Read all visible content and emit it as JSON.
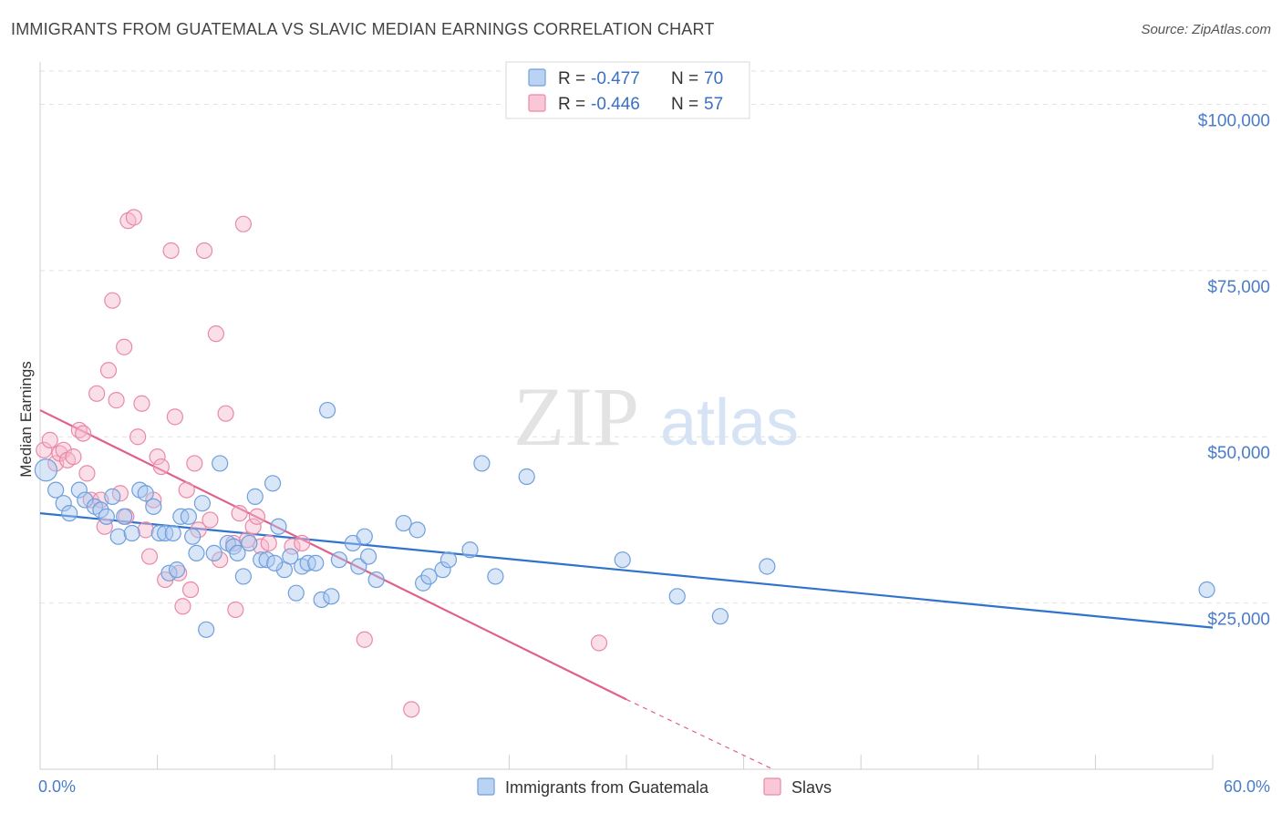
{
  "header": {
    "title": "IMMIGRANTS FROM GUATEMALA VS SLAVIC MEDIAN EARNINGS CORRELATION CHART",
    "source": "Source: ZipAtlas.com"
  },
  "watermark": {
    "zip": "ZIP",
    "atlas": "atlas"
  },
  "legend": {
    "r_label": "R =",
    "n_label": "N =",
    "rows": [
      {
        "r": "-0.477",
        "n": "70",
        "color": "#a9c8f0"
      },
      {
        "r": "-0.446",
        "n": "57",
        "color": "#f7b9cc"
      }
    ]
  },
  "colors": {
    "blue_fill": "#a9c8f0",
    "blue_stroke": "#6f9fdc",
    "blue_line": "#2f73cc",
    "pink_fill": "#f7b9cc",
    "pink_stroke": "#e88aa7",
    "pink_line": "#e0608c",
    "axis_text": "#4a7cc9"
  },
  "chart_data": {
    "type": "scatter",
    "ylabel": "Median Earnings",
    "xlim": [
      0,
      60
    ],
    "ylim": [
      0,
      105000
    ],
    "x_tick_labels": {
      "min": "0.0%",
      "max": "60.0%"
    },
    "y_ticks": [
      {
        "value": 25000,
        "label": "$25,000"
      },
      {
        "value": 50000,
        "label": "$50,000"
      },
      {
        "value": 75000,
        "label": "$75,000"
      },
      {
        "value": 100000,
        "label": "$100,000"
      }
    ],
    "grid": true,
    "legend_position": "top-center",
    "series": [
      {
        "name": "Immigrants from Guatemala",
        "color": "#a9c8f0",
        "trend": {
          "x": [
            0,
            60
          ],
          "y": [
            38500,
            21300
          ],
          "style": "solid"
        },
        "points": [
          [
            0.3,
            45000
          ],
          [
            0.8,
            42000
          ],
          [
            1.2,
            40000
          ],
          [
            1.5,
            38500
          ],
          [
            2.0,
            42000
          ],
          [
            2.3,
            40500
          ],
          [
            2.8,
            39500
          ],
          [
            3.1,
            39000
          ],
          [
            3.4,
            38000
          ],
          [
            3.7,
            41000
          ],
          [
            4.0,
            35000
          ],
          [
            4.3,
            38000
          ],
          [
            4.7,
            35500
          ],
          [
            5.1,
            42000
          ],
          [
            5.4,
            41500
          ],
          [
            5.8,
            39500
          ],
          [
            6.1,
            35500
          ],
          [
            6.4,
            35500
          ],
          [
            6.6,
            29500
          ],
          [
            6.8,
            35500
          ],
          [
            7.2,
            38000
          ],
          [
            7.6,
            38000
          ],
          [
            7.8,
            35000
          ],
          [
            8.0,
            32500
          ],
          [
            8.3,
            40000
          ],
          [
            8.5,
            21000
          ],
          [
            8.9,
            32500
          ],
          [
            9.2,
            46000
          ],
          [
            9.6,
            34000
          ],
          [
            9.9,
            33500
          ],
          [
            10.1,
            32500
          ],
          [
            10.4,
            29000
          ],
          [
            10.7,
            34000
          ],
          [
            11.0,
            41000
          ],
          [
            11.3,
            31500
          ],
          [
            11.6,
            31500
          ],
          [
            11.9,
            43000
          ],
          [
            12.2,
            36500
          ],
          [
            12.5,
            30000
          ],
          [
            12.8,
            32000
          ],
          [
            13.1,
            26500
          ],
          [
            13.4,
            30500
          ],
          [
            13.7,
            31000
          ],
          [
            14.1,
            31000
          ],
          [
            14.4,
            25500
          ],
          [
            14.7,
            54000
          ],
          [
            14.9,
            26000
          ],
          [
            15.3,
            31500
          ],
          [
            16.0,
            34000
          ],
          [
            16.3,
            30500
          ],
          [
            16.6,
            35000
          ],
          [
            16.8,
            32000
          ],
          [
            17.2,
            28500
          ],
          [
            18.6,
            37000
          ],
          [
            19.3,
            36000
          ],
          [
            19.6,
            28000
          ],
          [
            19.9,
            29000
          ],
          [
            20.6,
            30000
          ],
          [
            20.9,
            31500
          ],
          [
            22.0,
            33000
          ],
          [
            22.6,
            46000
          ],
          [
            23.3,
            29000
          ],
          [
            24.9,
            44000
          ],
          [
            29.8,
            31500
          ],
          [
            32.6,
            26000
          ],
          [
            34.8,
            23000
          ],
          [
            37.2,
            30500
          ],
          [
            59.7,
            27000
          ],
          [
            7.0,
            30000
          ],
          [
            12.0,
            31000
          ]
        ]
      },
      {
        "name": "Slavs",
        "color": "#f7b9cc",
        "trend": {
          "x": [
            0,
            30
          ],
          "y": [
            54000,
            10500
          ],
          "style": "solid",
          "extension": {
            "x": [
              30,
              37.5
            ],
            "y": [
              10500,
              0
            ],
            "style": "dashed"
          }
        },
        "points": [
          [
            0.2,
            48000
          ],
          [
            0.5,
            49500
          ],
          [
            0.8,
            46000
          ],
          [
            1.0,
            47500
          ],
          [
            1.2,
            48000
          ],
          [
            1.4,
            46500
          ],
          [
            1.7,
            47000
          ],
          [
            2.0,
            51000
          ],
          [
            2.2,
            50500
          ],
          [
            2.4,
            44500
          ],
          [
            2.6,
            40500
          ],
          [
            2.9,
            56500
          ],
          [
            3.1,
            40500
          ],
          [
            3.3,
            36500
          ],
          [
            3.5,
            60000
          ],
          [
            3.7,
            70500
          ],
          [
            3.9,
            55500
          ],
          [
            4.1,
            41500
          ],
          [
            4.3,
            63500
          ],
          [
            4.5,
            82500
          ],
          [
            4.8,
            83000
          ],
          [
            5.0,
            50000
          ],
          [
            5.2,
            55000
          ],
          [
            5.4,
            36000
          ],
          [
            5.6,
            32000
          ],
          [
            5.8,
            40500
          ],
          [
            6.0,
            47000
          ],
          [
            6.2,
            45500
          ],
          [
            6.4,
            28500
          ],
          [
            6.7,
            78000
          ],
          [
            6.9,
            53000
          ],
          [
            7.1,
            29500
          ],
          [
            7.3,
            24500
          ],
          [
            7.5,
            42000
          ],
          [
            7.7,
            27000
          ],
          [
            7.9,
            46000
          ],
          [
            8.1,
            36000
          ],
          [
            8.4,
            78000
          ],
          [
            8.7,
            37500
          ],
          [
            9.0,
            65500
          ],
          [
            9.2,
            31500
          ],
          [
            9.5,
            53500
          ],
          [
            9.9,
            34000
          ],
          [
            10.2,
            38500
          ],
          [
            10.4,
            82000
          ],
          [
            10.6,
            34500
          ],
          [
            10.9,
            36500
          ],
          [
            11.1,
            38000
          ],
          [
            11.3,
            33500
          ],
          [
            11.7,
            34000
          ],
          [
            12.9,
            33500
          ],
          [
            13.4,
            34000
          ],
          [
            16.6,
            19500
          ],
          [
            19.0,
            9000
          ],
          [
            28.6,
            19000
          ],
          [
            10.0,
            24000
          ],
          [
            4.4,
            38000
          ]
        ]
      }
    ]
  },
  "bottom_legend": [
    {
      "label": "Immigrants from Guatemala",
      "color": "#a9c8f0"
    },
    {
      "label": "Slavs",
      "color": "#f7b9cc"
    }
  ]
}
